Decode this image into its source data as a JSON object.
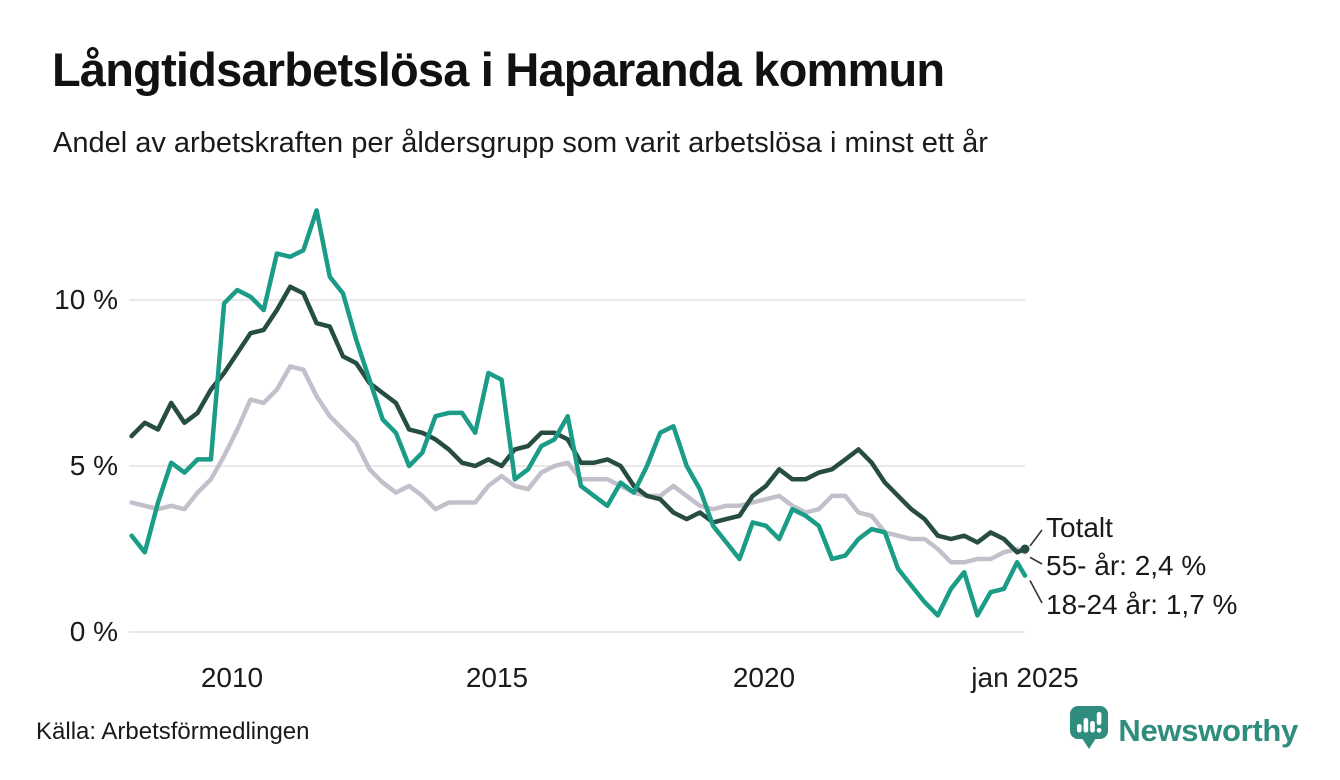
{
  "title": "Långtidsarbetslösa i Haparanda kommun",
  "subtitle": "Andel av arbetskraften per åldersgrupp som varit arbetslösa i minst ett år",
  "source": "Källa: Arbetsförmedlingen",
  "logo": {
    "brand": "Newsworthy",
    "icon": "bar-chart-bubble-icon",
    "color": "#2f8d7e"
  },
  "colors": {
    "teal_line": "#1a9c87",
    "dark_green_line": "#274d42",
    "gray_line": "#c3c0cb",
    "grid": "#e2e2e2",
    "connector": "#333333",
    "text": "#1a1a1a"
  },
  "chart_data": {
    "type": "line",
    "title": "Långtidsarbetslösa i Haparanda kommun",
    "subtitle": "Andel av arbetskraften per åldersgrupp som varit arbetslösa i minst ett år",
    "unit": "% av arbetskraften",
    "grid": "horizontal",
    "legend_position": "end-of-line-labels",
    "x_axis": {
      "tick_positions": [
        2010,
        2015,
        2020,
        2025
      ],
      "tick_labels": [
        "2010",
        "2015",
        "2020",
        "jan 2025"
      ],
      "range": [
        2008.05,
        2025.2
      ]
    },
    "y_axis": {
      "ticks": [
        0,
        5,
        10
      ],
      "tick_labels": [
        "0 %",
        "5 %",
        "10 %"
      ],
      "range": [
        0,
        13.2
      ]
    },
    "x": [
      2008.1,
      2008.35,
      2008.6,
      2008.85,
      2009.1,
      2009.35,
      2009.6,
      2009.85,
      2010.1,
      2010.35,
      2010.6,
      2010.85,
      2011.1,
      2011.35,
      2011.6,
      2011.85,
      2012.1,
      2012.35,
      2012.6,
      2012.85,
      2013.1,
      2013.35,
      2013.6,
      2013.85,
      2014.1,
      2014.35,
      2014.6,
      2014.85,
      2015.1,
      2015.35,
      2015.6,
      2015.85,
      2016.1,
      2016.35,
      2016.6,
      2016.85,
      2017.1,
      2017.35,
      2017.6,
      2017.85,
      2018.1,
      2018.35,
      2018.6,
      2018.85,
      2019.1,
      2019.35,
      2019.6,
      2019.85,
      2020.1,
      2020.35,
      2020.6,
      2020.85,
      2021.1,
      2021.35,
      2021.6,
      2021.85,
      2022.1,
      2022.35,
      2022.6,
      2022.85,
      2023.1,
      2023.35,
      2023.6,
      2023.85,
      2024.1,
      2024.35,
      2024.6,
      2024.85,
      2025.0
    ],
    "series": [
      {
        "name": "55- år",
        "color": "#c3c0cb",
        "width": 4.5,
        "end_dot": false,
        "last_value_label": "2,4 %",
        "values": [
          3.9,
          3.8,
          3.7,
          3.8,
          3.7,
          4.2,
          4.6,
          5.3,
          6.1,
          7.0,
          6.9,
          7.3,
          8.0,
          7.9,
          7.1,
          6.5,
          6.1,
          5.7,
          4.9,
          4.5,
          4.2,
          4.4,
          4.1,
          3.7,
          3.9,
          3.9,
          3.9,
          4.4,
          4.7,
          4.4,
          4.3,
          4.8,
          5.0,
          5.1,
          4.6,
          4.6,
          4.6,
          4.4,
          4.2,
          4.1,
          4.1,
          4.4,
          4.1,
          3.8,
          3.7,
          3.8,
          3.8,
          3.9,
          4.0,
          4.1,
          3.8,
          3.6,
          3.7,
          4.1,
          4.1,
          3.6,
          3.5,
          3.0,
          2.9,
          2.8,
          2.8,
          2.5,
          2.1,
          2.1,
          2.2,
          2.2,
          2.4,
          2.5,
          2.4
        ]
      },
      {
        "name": "Totalt",
        "color": "#274d42",
        "width": 4.5,
        "end_dot": true,
        "last_value_label": "2,5 %",
        "values": [
          5.9,
          6.3,
          6.1,
          6.9,
          6.3,
          6.6,
          7.3,
          7.8,
          8.4,
          9.0,
          9.1,
          9.7,
          10.4,
          10.2,
          9.3,
          9.2,
          8.3,
          8.1,
          7.5,
          7.2,
          6.9,
          6.1,
          6.0,
          5.8,
          5.5,
          5.1,
          5.0,
          5.2,
          5.0,
          5.5,
          5.6,
          6.0,
          6.0,
          5.8,
          5.1,
          5.1,
          5.2,
          5.0,
          4.4,
          4.1,
          4.0,
          3.6,
          3.4,
          3.6,
          3.3,
          3.4,
          3.5,
          4.1,
          4.4,
          4.9,
          4.6,
          4.6,
          4.8,
          4.9,
          5.2,
          5.5,
          5.1,
          4.5,
          4.1,
          3.7,
          3.4,
          2.9,
          2.8,
          2.9,
          2.7,
          3.0,
          2.8,
          2.4,
          2.5
        ]
      },
      {
        "name": "18-24 år",
        "color": "#1a9c87",
        "width": 4.5,
        "end_dot": false,
        "last_value_label": "1,7 %",
        "values": [
          2.9,
          2.4,
          3.9,
          5.1,
          4.8,
          5.2,
          5.2,
          9.9,
          10.3,
          10.1,
          9.7,
          11.4,
          11.3,
          11.5,
          12.7,
          10.7,
          10.2,
          8.8,
          7.6,
          6.4,
          6.0,
          5.0,
          5.4,
          6.5,
          6.6,
          6.6,
          6.0,
          7.8,
          7.6,
          4.6,
          4.9,
          5.6,
          5.8,
          6.5,
          4.4,
          4.1,
          3.8,
          4.5,
          4.2,
          5.0,
          6.0,
          6.2,
          5.0,
          4.3,
          3.2,
          2.7,
          2.2,
          3.3,
          3.2,
          2.8,
          3.7,
          3.5,
          3.2,
          2.2,
          2.3,
          2.8,
          3.1,
          3.0,
          1.9,
          1.4,
          0.9,
          0.5,
          1.3,
          1.8,
          0.5,
          1.2,
          1.3,
          2.1,
          1.7
        ]
      }
    ],
    "annotations": [
      {
        "label": "Totalt",
        "series": "Totalt"
      },
      {
        "label": "55- år: 2,4 %",
        "series": "55- år"
      },
      {
        "label": "18-24 år: 1,7 %",
        "series": "18-24 år"
      }
    ]
  }
}
